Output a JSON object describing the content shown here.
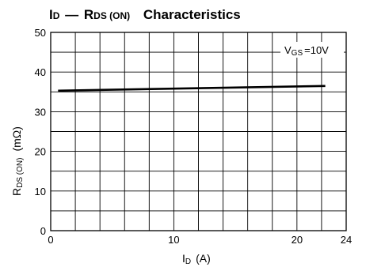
{
  "chart_data": {
    "type": "line",
    "title": {
      "i": "I",
      "d": "D",
      "dash": "—",
      "r": "R",
      "ds_on": "DS (ON)",
      "rest": "Characteristics"
    },
    "xlabel": {
      "main": "I",
      "sub": "D",
      "unit": "(A)"
    },
    "ylabel": {
      "main": "R",
      "sub": "DS (ON)",
      "unit": "(mΩ)"
    },
    "xlim": [
      0,
      24
    ],
    "ylim": [
      0,
      50
    ],
    "x_tick_labels": [
      {
        "v": 0,
        "t": "0"
      },
      {
        "v": 10,
        "t": "10"
      },
      {
        "v": 20,
        "t": "20"
      },
      {
        "v": 24,
        "t": "24"
      }
    ],
    "y_tick_labels": [
      {
        "v": 0,
        "t": "0"
      },
      {
        "v": 10,
        "t": "10"
      },
      {
        "v": 20,
        "t": "20"
      },
      {
        "v": 30,
        "t": "30"
      },
      {
        "v": 40,
        "t": "40"
      },
      {
        "v": 50,
        "t": "50"
      }
    ],
    "x_grid_step": 2,
    "y_grid_step": 5,
    "grid": true,
    "annotation": {
      "main": "V",
      "sub": "GS",
      "value": "=10V",
      "position": "top-right"
    },
    "series": [
      {
        "x": [
          0.6,
          22.3
        ],
        "y": [
          35.3,
          36.5
        ]
      }
    ]
  }
}
